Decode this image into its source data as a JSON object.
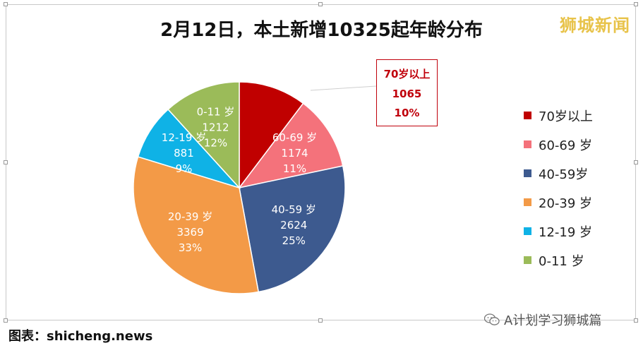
{
  "title": "2月12日，本土新增10325起年龄分布",
  "watermark": "狮城新闻",
  "source_text": "图表：shicheng.news",
  "wechat_text": "A计划学习狮城篇",
  "callout": {
    "label": "70岁以上",
    "value": "1065",
    "percent": "10%"
  },
  "chart_data": {
    "type": "pie",
    "title": "2月12日，本土新增10325起年龄分布",
    "slices": [
      {
        "label": "70岁以上",
        "legend": "70岁以上",
        "value": 1065,
        "percent": "10%",
        "color": "#c00000",
        "label_color": "#c0000b"
      },
      {
        "label": "60-69 岁",
        "legend": "60-69 岁",
        "value": 1174,
        "percent": "11%",
        "color": "#f4727b",
        "label_color": "#ffffff"
      },
      {
        "label": "40-59 岁",
        "legend": "40-59岁",
        "value": 2624,
        "percent": "25%",
        "color": "#3d5a8f",
        "label_color": "#ffffff"
      },
      {
        "label": "20-39 岁",
        "legend": "20-39 岁",
        "value": 3369,
        "percent": "33%",
        "color": "#f39a47",
        "label_color": "#ffffff"
      },
      {
        "label": "12-19 岁",
        "legend": "12-19 岁",
        "value": 881,
        "percent": "9%",
        "color": "#0fb2e6",
        "label_color": "#ffffff"
      },
      {
        "label": "0-11 岁",
        "legend": "0-11 岁",
        "value": 1212,
        "percent": "12%",
        "color": "#9bbb59",
        "label_color": "#ffffff"
      }
    ],
    "legend_position": "right"
  }
}
